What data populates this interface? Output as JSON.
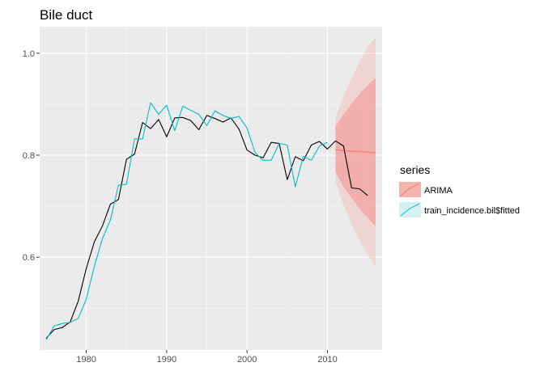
{
  "chart_data": {
    "type": "line",
    "title": "Bile duct",
    "xlabel": "",
    "ylabel": "",
    "xlim": [
      1974.2,
      2016.8
    ],
    "ylim": [
      0.418,
      1.052
    ],
    "x_ticks": [
      1980,
      1990,
      2000,
      2010
    ],
    "y_ticks": [
      0.6,
      0.8,
      1.0
    ],
    "x_tick_labels": [
      "1980",
      "1990",
      "2000",
      "2010"
    ],
    "y_tick_labels": [
      "0.6",
      "0.8",
      "1.0"
    ],
    "grid": true,
    "legend_position": "right",
    "legend_title": "series",
    "colors": {
      "panel": "#ebebeb",
      "grid_major": "#ffffff",
      "grid_minor": "#f5f5f5",
      "actual": "#000000",
      "arima": "#f8766d",
      "fitted": "#00bfc4"
    },
    "series": [
      {
        "x": [
          1975,
          1976,
          1977,
          1978,
          1979,
          1980,
          1981,
          1982,
          1983,
          1984,
          1985,
          1986,
          1987,
          1988,
          1989,
          1990,
          1991,
          1992,
          1993,
          1994,
          1995,
          1996,
          1997,
          1998,
          1999,
          2000,
          2001,
          2002,
          2003,
          2004,
          2005,
          2006,
          2007,
          2008,
          2009,
          2010,
          2011
        ],
        "values": [
          0.441,
          0.458,
          0.462,
          0.473,
          0.514,
          0.578,
          0.63,
          0.661,
          0.704,
          0.713,
          0.792,
          0.802,
          0.864,
          0.852,
          0.87,
          0.836,
          0.873,
          0.874,
          0.868,
          0.85,
          0.878,
          0.872,
          0.865,
          0.873,
          0.851,
          0.81,
          0.8,
          0.795,
          0.825,
          0.823,
          0.752,
          0.797,
          0.789,
          0.82,
          0.827,
          0.812,
          0.828
        ]
      },
      {
        "name": "train_incidence.bil$fitted",
        "x": [
          1975,
          1976,
          1977,
          1978,
          1979,
          1980,
          1981,
          1982,
          1983,
          1984,
          1985,
          1986,
          1987,
          1988,
          1989,
          1990,
          1991,
          1992,
          1993,
          1994,
          1995,
          1996,
          1997,
          1998,
          1999,
          2000,
          2001,
          2002,
          2003,
          2004,
          2005,
          2006,
          2007,
          2008,
          2009,
          2010
        ],
        "values": [
          0.438,
          0.465,
          0.47,
          0.472,
          0.48,
          0.518,
          0.582,
          0.636,
          0.673,
          0.741,
          0.743,
          0.832,
          0.832,
          0.903,
          0.88,
          0.898,
          0.848,
          0.896,
          0.888,
          0.88,
          0.858,
          0.887,
          0.878,
          0.872,
          0.876,
          0.853,
          0.805,
          0.79,
          0.79,
          0.823,
          0.82,
          0.738,
          0.798,
          0.79,
          0.818,
          0.825
        ]
      },
      {
        "name": "ARIMA",
        "x": [
          2011,
          2012,
          2013,
          2014,
          2015,
          2016
        ],
        "values": [
          0.811,
          0.809,
          0.808,
          0.807,
          0.806,
          0.805
        ],
        "lower80": [
          0.767,
          0.738,
          0.716,
          0.695,
          0.677,
          0.661
        ],
        "upper80": [
          0.856,
          0.88,
          0.901,
          0.92,
          0.937,
          0.952
        ],
        "lower95": [
          0.748,
          0.703,
          0.665,
          0.633,
          0.605,
          0.58
        ],
        "upper95": [
          0.875,
          0.915,
          0.951,
          0.983,
          1.012,
          1.032
        ]
      }
    ],
    "holdout": {
      "x": [
        2011,
        2012,
        2013,
        2014,
        2015
      ],
      "values": [
        0.828,
        0.818,
        0.736,
        0.734,
        0.721
      ]
    }
  }
}
